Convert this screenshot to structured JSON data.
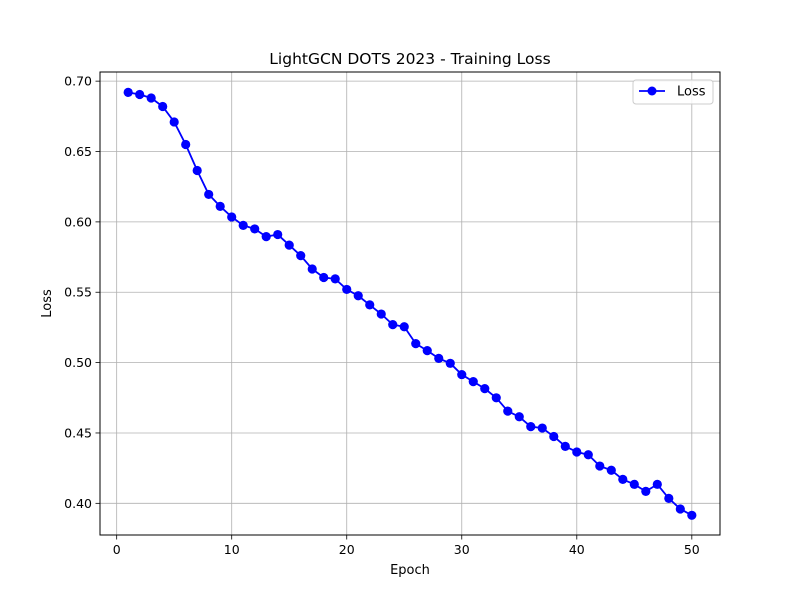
{
  "chart_data": {
    "type": "line",
    "title": "LightGCN DOTS 2023 - Training Loss",
    "xlabel": "Epoch",
    "ylabel": "Loss",
    "xlim": [
      -1.45,
      52.45
    ],
    "ylim": [
      0.3775,
      0.7065
    ],
    "xticks": [
      0,
      10,
      20,
      30,
      40,
      50
    ],
    "xtick_labels": [
      "0",
      "10",
      "20",
      "30",
      "40",
      "50"
    ],
    "yticks": [
      0.4,
      0.45,
      0.5,
      0.55,
      0.6,
      0.65,
      0.7
    ],
    "ytick_labels": [
      "0.40",
      "0.45",
      "0.50",
      "0.55",
      "0.60",
      "0.65",
      "0.70"
    ],
    "grid": true,
    "legend_position": "top-right",
    "x": [
      1,
      2,
      3,
      4,
      5,
      6,
      7,
      8,
      9,
      10,
      11,
      12,
      13,
      14,
      15,
      16,
      17,
      18,
      19,
      20,
      21,
      22,
      23,
      24,
      25,
      26,
      27,
      28,
      29,
      30,
      31,
      32,
      33,
      34,
      35,
      36,
      37,
      38,
      39,
      40,
      41,
      42,
      43,
      44,
      45,
      46,
      47,
      48,
      49,
      50
    ],
    "series": [
      {
        "name": "Loss",
        "color": "#0000ff",
        "marker": "circle",
        "values": [
          0.692,
          0.6905,
          0.688,
          0.682,
          0.671,
          0.655,
          0.6365,
          0.6195,
          0.611,
          0.6035,
          0.5975,
          0.595,
          0.5895,
          0.591,
          0.5835,
          0.576,
          0.5665,
          0.5605,
          0.5595,
          0.552,
          0.5475,
          0.541,
          0.5345,
          0.527,
          0.5255,
          0.5135,
          0.5085,
          0.503,
          0.4995,
          0.4915,
          0.4865,
          0.4815,
          0.475,
          0.4655,
          0.4615,
          0.4545,
          0.4535,
          0.4475,
          0.4405,
          0.4365,
          0.4345,
          0.4265,
          0.4235,
          0.417,
          0.4135,
          0.4085,
          0.4135,
          0.4035,
          0.396,
          0.3915
        ]
      }
    ]
  }
}
